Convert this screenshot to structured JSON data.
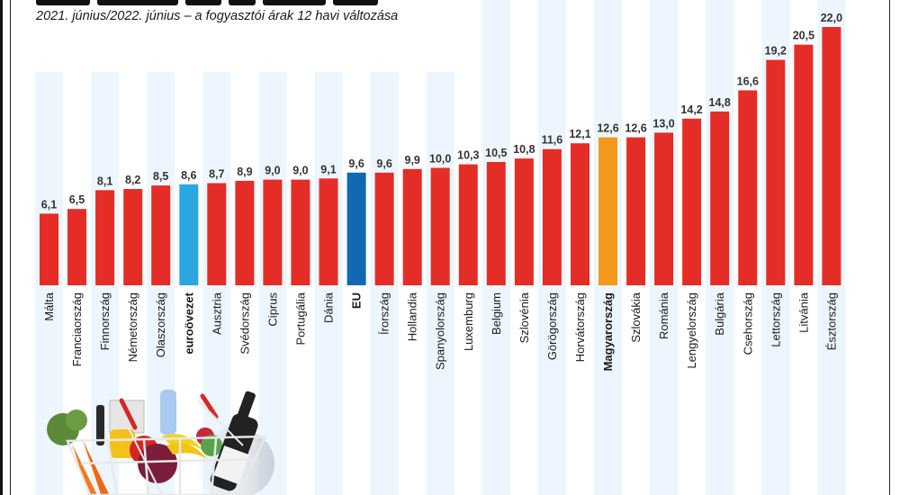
{
  "header": {
    "subtitle": "2021. június/2022. június – a fogyasztói árak 12 havi változása"
  },
  "colors": {
    "default_bar": "#e52d27",
    "eurozone_bar": "#2aa7e0",
    "eu_bar": "#1268b3",
    "hungary_bar": "#f39a1c",
    "stripe": "#edf6fe"
  },
  "chart_data": {
    "type": "bar",
    "title": "",
    "subtitle": "2021. június/2022. június – a fogyasztói árak 12 havi változása",
    "xlabel": "",
    "ylabel": "",
    "ylim": [
      0,
      22
    ],
    "grid": false,
    "categories": [
      "Málta",
      "Franciaország",
      "Finnország",
      "Németország",
      "Olaszország",
      "euroövezet",
      "Ausztria",
      "Svédország",
      "Ciprus",
      "Portugália",
      "Dánia",
      "EU",
      "Írország",
      "Hollandia",
      "Spanyolország",
      "Luxemburg",
      "Belgium",
      "Szlovénia",
      "Görögország",
      "Horvátország",
      "Magyarország",
      "Szlovákia",
      "Románia",
      "Lengyelország",
      "Bulgária",
      "Csehország",
      "Lettország",
      "Litvánia",
      "Észtország"
    ],
    "values": [
      6.1,
      6.5,
      8.1,
      8.2,
      8.5,
      8.6,
      8.7,
      8.9,
      9.0,
      9.0,
      9.1,
      9.6,
      9.6,
      9.9,
      10.0,
      10.3,
      10.5,
      10.8,
      11.6,
      12.1,
      12.6,
      12.6,
      13.0,
      14.2,
      14.8,
      16.6,
      19.2,
      20.5,
      22.0
    ],
    "value_labels": [
      "6,1",
      "6,5",
      "8,1",
      "8,2",
      "8,5",
      "8,6",
      "8,7",
      "8,9",
      "9,0",
      "9,0",
      "9,1",
      "9,6",
      "9,6",
      "9,9",
      "10,0",
      "10,3",
      "10,5",
      "10,8",
      "11,6",
      "12,1",
      "12,6",
      "12,6",
      "13,0",
      "14,2",
      "14,8",
      "16,6",
      "19,2",
      "20,5",
      "22,0"
    ],
    "highlight": {
      "euroövezet": "eurozone_bar",
      "EU": "eu_bar",
      "Magyarország": "hungary_bar"
    },
    "bold_categories": [
      "euroövezet",
      "EU",
      "Magyarország"
    ]
  }
}
